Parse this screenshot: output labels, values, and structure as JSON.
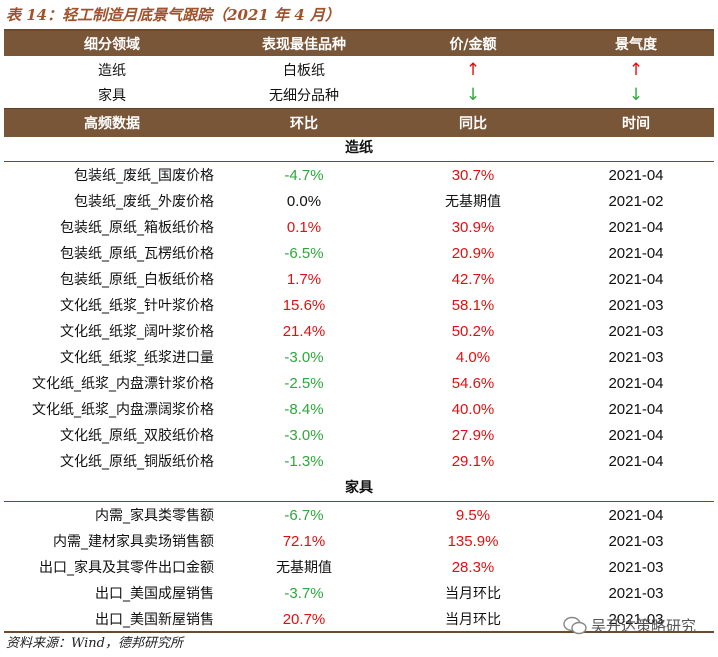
{
  "title": "表 14：轻工制造月底景气跟踪（2021 年 4 月）",
  "summary_header": [
    "细分领域",
    "表现最佳品种",
    "价/金额",
    "景气度"
  ],
  "summary_rows": [
    {
      "field": "造纸",
      "best": "白板纸",
      "price_arrow": "↑",
      "price_dir": "up",
      "boom_arrow": "↑",
      "boom_dir": "up"
    },
    {
      "field": "家具",
      "best": "无细分品种",
      "price_arrow": "↓",
      "price_dir": "down",
      "boom_arrow": "↓",
      "boom_dir": "down"
    }
  ],
  "data_header": [
    "高频数据",
    "环比",
    "同比",
    "时间"
  ],
  "sections": [
    {
      "name": "造纸",
      "rows": [
        {
          "name": "包装纸_废纸_国废价格",
          "mom": "-4.7%",
          "yoy": "30.7%",
          "date": "2021-04"
        },
        {
          "name": "包装纸_废纸_外废价格",
          "mom": "0.0%",
          "yoy": "无基期值",
          "date": "2021-02"
        },
        {
          "name": "包装纸_原纸_箱板纸价格",
          "mom": "0.1%",
          "yoy": "30.9%",
          "date": "2021-04"
        },
        {
          "name": "包装纸_原纸_瓦楞纸价格",
          "mom": "-6.5%",
          "yoy": "20.9%",
          "date": "2021-04"
        },
        {
          "name": "包装纸_原纸_白板纸价格",
          "mom": "1.7%",
          "yoy": "42.7%",
          "date": "2021-04"
        },
        {
          "name": "文化纸_纸浆_针叶浆价格",
          "mom": "15.6%",
          "yoy": "58.1%",
          "date": "2021-03"
        },
        {
          "name": "文化纸_纸浆_阔叶浆价格",
          "mom": "21.4%",
          "yoy": "50.2%",
          "date": "2021-03"
        },
        {
          "name": "文化纸_纸浆_纸浆进口量",
          "mom": "-3.0%",
          "yoy": "4.0%",
          "date": "2021-03"
        },
        {
          "name": "文化纸_纸浆_内盘漂针浆价格",
          "mom": "-2.5%",
          "yoy": "54.6%",
          "date": "2021-04"
        },
        {
          "name": "文化纸_纸浆_内盘漂阔浆价格",
          "mom": "-8.4%",
          "yoy": "40.0%",
          "date": "2021-04"
        },
        {
          "name": "文化纸_原纸_双胶纸价格",
          "mom": "-3.0%",
          "yoy": "27.9%",
          "date": "2021-04"
        },
        {
          "name": "文化纸_原纸_铜版纸价格",
          "mom": "-1.3%",
          "yoy": "29.1%",
          "date": "2021-04"
        }
      ]
    },
    {
      "name": "家具",
      "rows": [
        {
          "name": "内需_家具类零售额",
          "mom": "-6.7%",
          "yoy": "9.5%",
          "date": "2021-04"
        },
        {
          "name": "内需_建材家具卖场销售额",
          "mom": "72.1%",
          "yoy": "135.9%",
          "date": "2021-03"
        },
        {
          "name": "出口_家具及其零件出口金额",
          "mom": "无基期值",
          "yoy": "28.3%",
          "date": "2021-03"
        },
        {
          "name": "出口_美国成屋销售",
          "mom": "-3.7%",
          "yoy": "当月环比",
          "date": "2021-03"
        },
        {
          "name": "出口_美国新屋销售",
          "mom": "20.7%",
          "yoy": "当月环比",
          "date": "2021-03"
        }
      ]
    }
  ],
  "source": "资料来源：Wind，德邦研究所",
  "watermark": "吴开达策略研究",
  "colors": {
    "header_bg": "#7a5638",
    "positive": "#e01010",
    "negative": "#2ea83a",
    "title": "#a0522d"
  }
}
